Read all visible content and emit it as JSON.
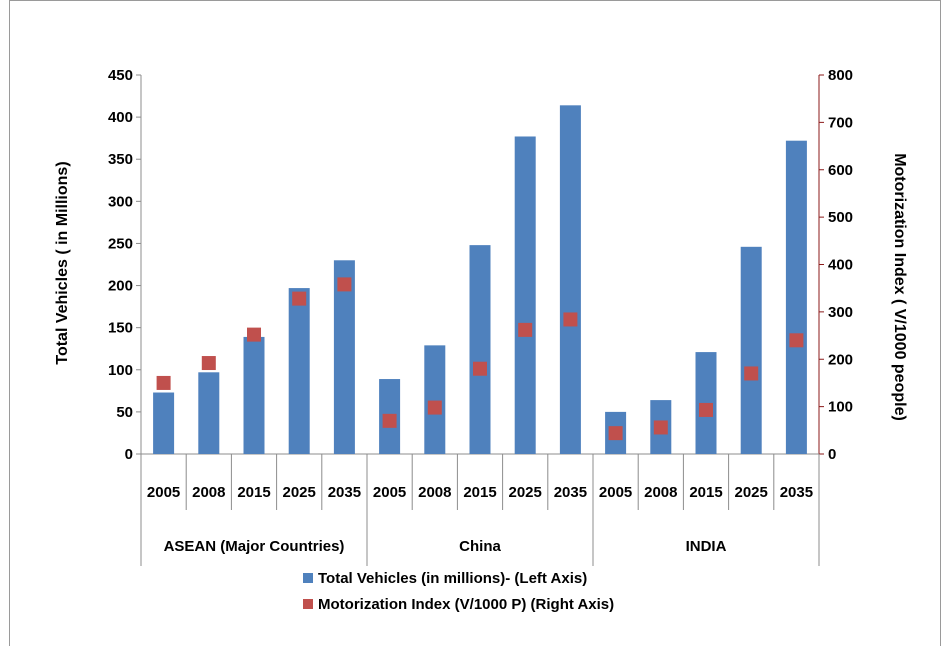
{
  "chart_data": {
    "type": "bar",
    "groups": [
      {
        "name": "ASEAN (Major Countries)",
        "categories": [
          "2005",
          "2008",
          "2015",
          "2025",
          "2035"
        ]
      },
      {
        "name": "China",
        "categories": [
          "2005",
          "2008",
          "2015",
          "2025",
          "2035"
        ]
      },
      {
        "name": "INDIA",
        "categories": [
          "2005",
          "2008",
          "2015",
          "2025",
          "2035"
        ]
      }
    ],
    "series": [
      {
        "name": "Total Vehicles (in millions)- (Left Axis)",
        "type": "bar",
        "axis": "left",
        "color": "#4F81BD",
        "values": [
          73,
          97,
          139,
          197,
          230,
          89,
          129,
          248,
          377,
          414,
          50,
          64,
          121,
          246,
          372
        ]
      },
      {
        "name": "Motorization Index (V/1000 P) (Right Axis)",
        "type": "marker",
        "axis": "right",
        "color": "#C0504D",
        "values": [
          150,
          192,
          252,
          328,
          358,
          70,
          98,
          180,
          262,
          284,
          44,
          56,
          93,
          170,
          240
        ]
      }
    ],
    "ylabel": "Total Vehicles ( in Millions)",
    "y2label": "Motorization Index ( V/1000 people)",
    "ylim": [
      0,
      450
    ],
    "y2lim": [
      0,
      800
    ],
    "yticks": [
      "0",
      "50",
      "100",
      "150",
      "200",
      "250",
      "300",
      "350",
      "400",
      "450"
    ],
    "y2ticks": [
      "0",
      "100",
      "200",
      "300",
      "400",
      "500",
      "600",
      "700",
      "800"
    ],
    "legend_position": "bottom",
    "grid": false
  }
}
